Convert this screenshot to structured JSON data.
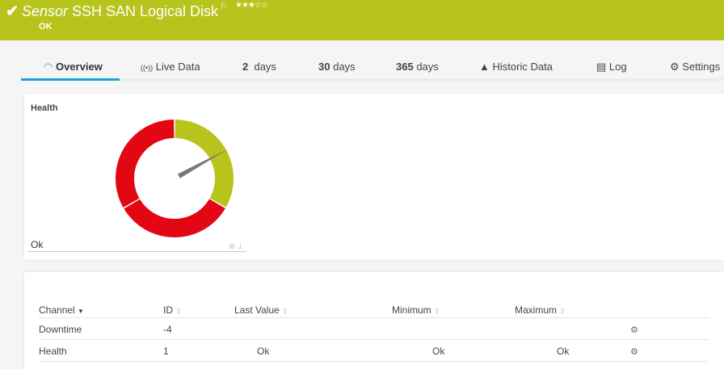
{
  "header": {
    "prefix": "Sensor",
    "title": "SSH SAN Logical Disk",
    "status": "OK",
    "stars": "★★★☆☆",
    "flag_icon": "flag-icon",
    "check_icon": "check-icon",
    "color": "#b8c41c"
  },
  "tabs": [
    {
      "label": "Overview",
      "icon": "◠"
    },
    {
      "label": "Live Data",
      "icon": "((•))"
    },
    {
      "num": "2",
      "label": "days"
    },
    {
      "num": "30",
      "label": "days"
    },
    {
      "num": "365",
      "label": "days"
    },
    {
      "label": "Historic Data",
      "icon": "▲"
    },
    {
      "label": "Log",
      "icon": "▤"
    },
    {
      "label": "Settings",
      "icon": "⚙"
    }
  ],
  "gauge": {
    "label": "Health",
    "value_text": "Ok",
    "needle_level": 0.17,
    "segments": [
      {
        "share": 0.333,
        "color": "#b8c41c"
      },
      {
        "share": 0.333,
        "color": "#e30613"
      },
      {
        "share": 0.334,
        "color": "#e30613"
      }
    ]
  },
  "table": {
    "headers": [
      "Channel",
      "ID",
      "Last Value",
      "Minimum",
      "Maximum"
    ],
    "rows": [
      {
        "channel": "Downtime",
        "id": "-4",
        "last": "",
        "min": "",
        "max": ""
      },
      {
        "channel": "Health",
        "id": "1",
        "last": "Ok",
        "min": "Ok",
        "max": "Ok"
      }
    ]
  }
}
